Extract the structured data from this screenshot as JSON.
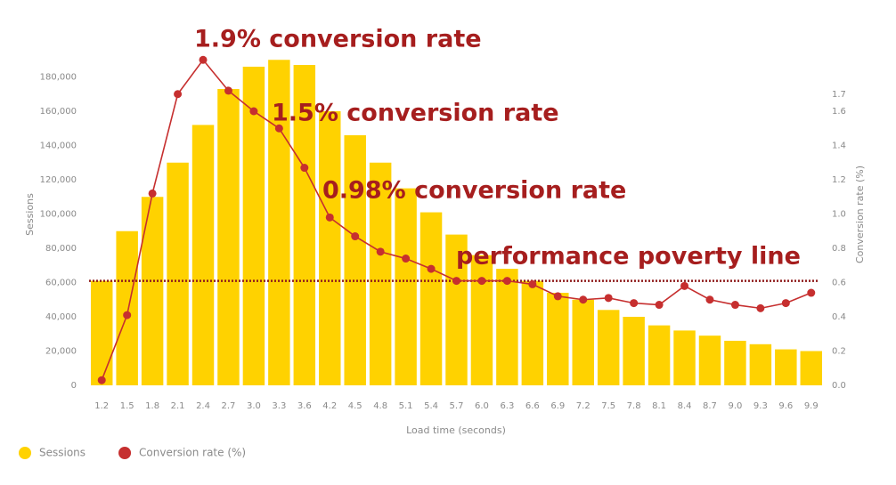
{
  "chart_data": {
    "type": "bar",
    "x_label": "Load time (seconds)",
    "y_label": "Sessions",
    "y2_label": "Conversion rate (%)",
    "categories": [
      "1.2",
      "1.5",
      "1.8",
      "2.1",
      "2.4",
      "2.7",
      "3.0",
      "3.3",
      "3.6",
      "4.2",
      "4.5",
      "4.8",
      "5.1",
      "5.4",
      "5.7",
      "6.0",
      "6.3",
      "6.6",
      "6.9",
      "7.2",
      "7.5",
      "7.8",
      "8.1",
      "8.4",
      "8.7",
      "9.0",
      "9.3",
      "9.6",
      "9.9"
    ],
    "series": [
      {
        "name": "Sessions",
        "type": "bar",
        "color": "#ffd200",
        "values": [
          61000,
          90000,
          110000,
          130000,
          152000,
          173000,
          186000,
          190000,
          187000,
          160000,
          146000,
          130000,
          115000,
          101000,
          88000,
          76000,
          68000,
          61000,
          54000,
          50000,
          44000,
          40000,
          35000,
          32000,
          29000,
          26000,
          24000,
          21000,
          20000
        ]
      },
      {
        "name": "Conversion rate (%)",
        "type": "line",
        "axis": "y2",
        "color": "#c62f2f",
        "values": [
          0.03,
          0.41,
          1.12,
          1.7,
          1.9,
          1.72,
          1.6,
          1.5,
          1.27,
          0.98,
          0.87,
          0.78,
          0.74,
          0.68,
          0.61,
          0.61,
          0.61,
          0.59,
          0.52,
          0.5,
          0.51,
          0.48,
          0.47,
          0.58,
          0.5,
          0.47,
          0.45,
          0.48,
          0.54
        ]
      }
    ],
    "ylim": [
      0,
      200000
    ],
    "yticks": [
      0,
      {
        "value": 20000,
        "label": "20,000"
      },
      {
        "value": 40000,
        "label": "40,000"
      },
      {
        "value": 60000,
        "label": "60,000"
      },
      {
        "value": 80000,
        "label": "80,000"
      },
      {
        "value": 100000,
        "label": "100,000"
      },
      {
        "value": 120000,
        "label": "120,000"
      },
      {
        "value": 140000,
        "label": "140,000"
      },
      {
        "value": 160000,
        "label": "160,000"
      },
      {
        "value": 180000,
        "label": "180,000"
      }
    ],
    "y2lim": [
      0,
      2.0
    ],
    "y2ticks": [
      {
        "value": 0,
        "label": "0.0"
      },
      0.2,
      0.4,
      0.6,
      0.8,
      {
        "value": 1,
        "label": "1.0"
      },
      1.2,
      1.4,
      1.6,
      1.7
    ],
    "poverty_line": 0.61,
    "annotations": [
      "1.9% conversion rate",
      "1.5% conversion rate",
      "0.98% conversion rate",
      "performance poverty line"
    ],
    "legend": "bottom-left"
  }
}
